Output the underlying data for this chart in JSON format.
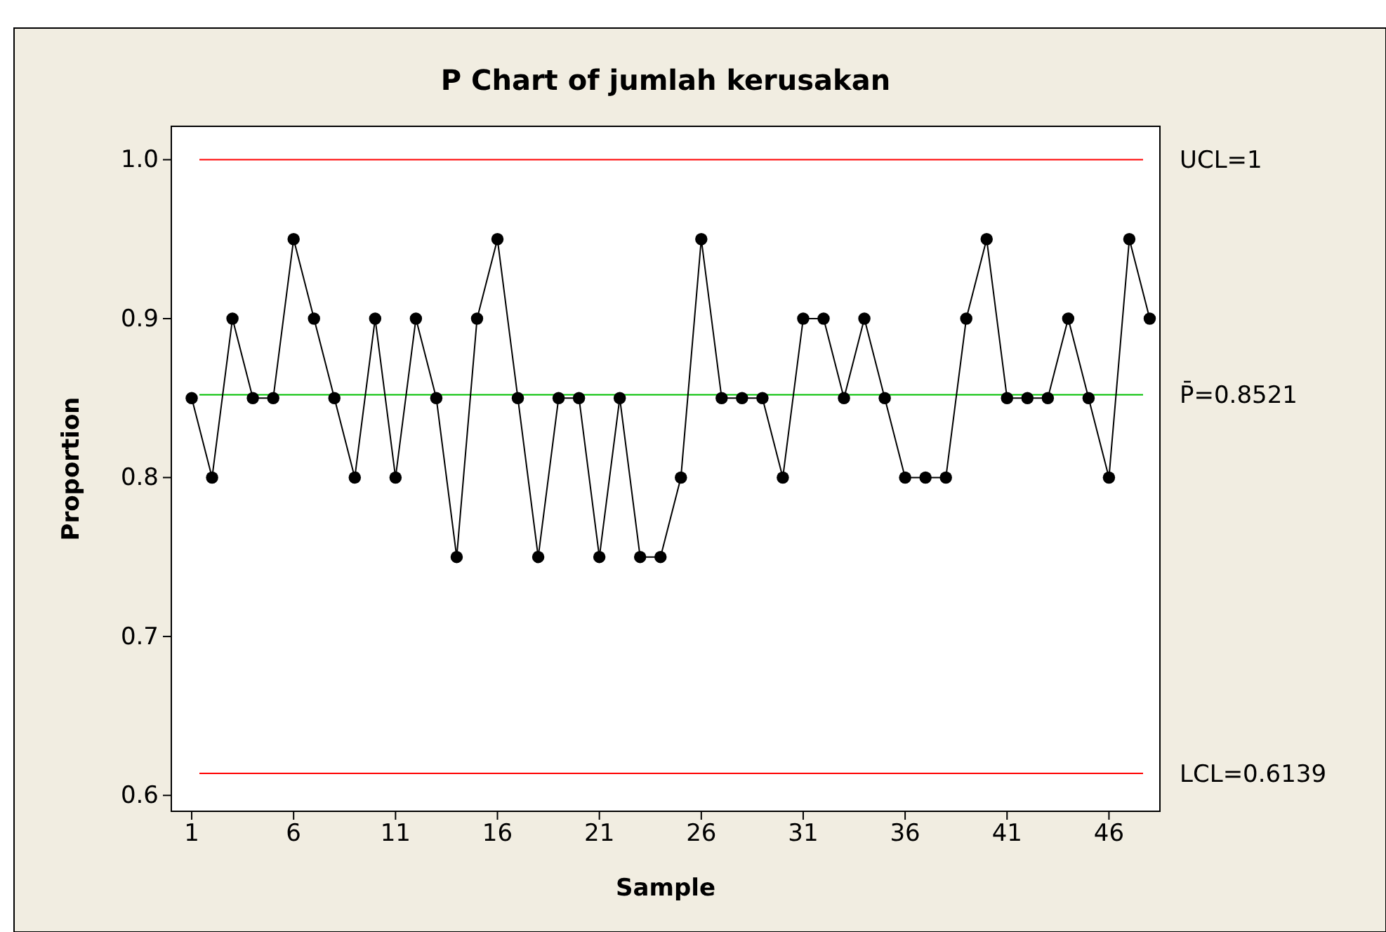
{
  "chart_data": {
    "type": "line",
    "title": "P Chart of jumlah kerusakan",
    "xlabel": "Sample",
    "ylabel": "Proportion",
    "x": [
      1,
      2,
      3,
      4,
      5,
      6,
      7,
      8,
      9,
      10,
      11,
      12,
      13,
      14,
      15,
      16,
      17,
      18,
      19,
      20,
      21,
      22,
      23,
      24,
      25,
      26,
      27,
      28,
      29,
      30,
      31,
      32,
      33,
      34,
      35,
      36,
      37,
      38,
      39,
      40,
      41,
      42,
      43,
      44,
      45,
      46,
      47,
      48
    ],
    "series": [
      {
        "color": "#000000",
        "values": [
          0.85,
          0.8,
          0.9,
          0.85,
          0.85,
          0.95,
          0.9,
          0.85,
          0.8,
          0.9,
          0.8,
          0.9,
          0.85,
          0.75,
          0.9,
          0.95,
          0.85,
          0.75,
          0.85,
          0.85,
          0.75,
          0.85,
          0.75,
          0.75,
          0.8,
          0.95,
          0.85,
          0.85,
          0.85,
          0.8,
          0.9,
          0.9,
          0.85,
          0.9,
          0.85,
          0.8,
          0.8,
          0.8,
          0.9,
          0.95,
          0.85,
          0.85,
          0.85,
          0.9,
          0.85,
          0.8,
          0.95,
          0.9
        ]
      }
    ],
    "marker": "circle",
    "line_style": "solid",
    "xlim": [
      0,
      48.5
    ],
    "xticks": [
      1,
      6,
      11,
      16,
      21,
      26,
      31,
      36,
      41,
      46
    ],
    "ylim": [
      0.59,
      1.021
    ],
    "yticks": [
      {
        "value": 0.6,
        "label": "0.6"
      },
      {
        "value": 0.7,
        "label": "0.7"
      },
      {
        "value": 0.8,
        "label": "0.8"
      },
      {
        "value": 0.9,
        "label": "0.9"
      },
      {
        "value": 1.0,
        "label": "1.0"
      }
    ],
    "ref_lines": [
      {
        "axis": "y",
        "value": 1,
        "label": "UCL=1",
        "color": "#ff0000"
      },
      {
        "axis": "y",
        "value": 0.8521,
        "label": "P̄=0.8521",
        "color": "#00c000"
      },
      {
        "axis": "y",
        "value": 0.6139,
        "label": "LCL=0.6139",
        "color": "#ff0000"
      }
    ],
    "grid": false
  }
}
